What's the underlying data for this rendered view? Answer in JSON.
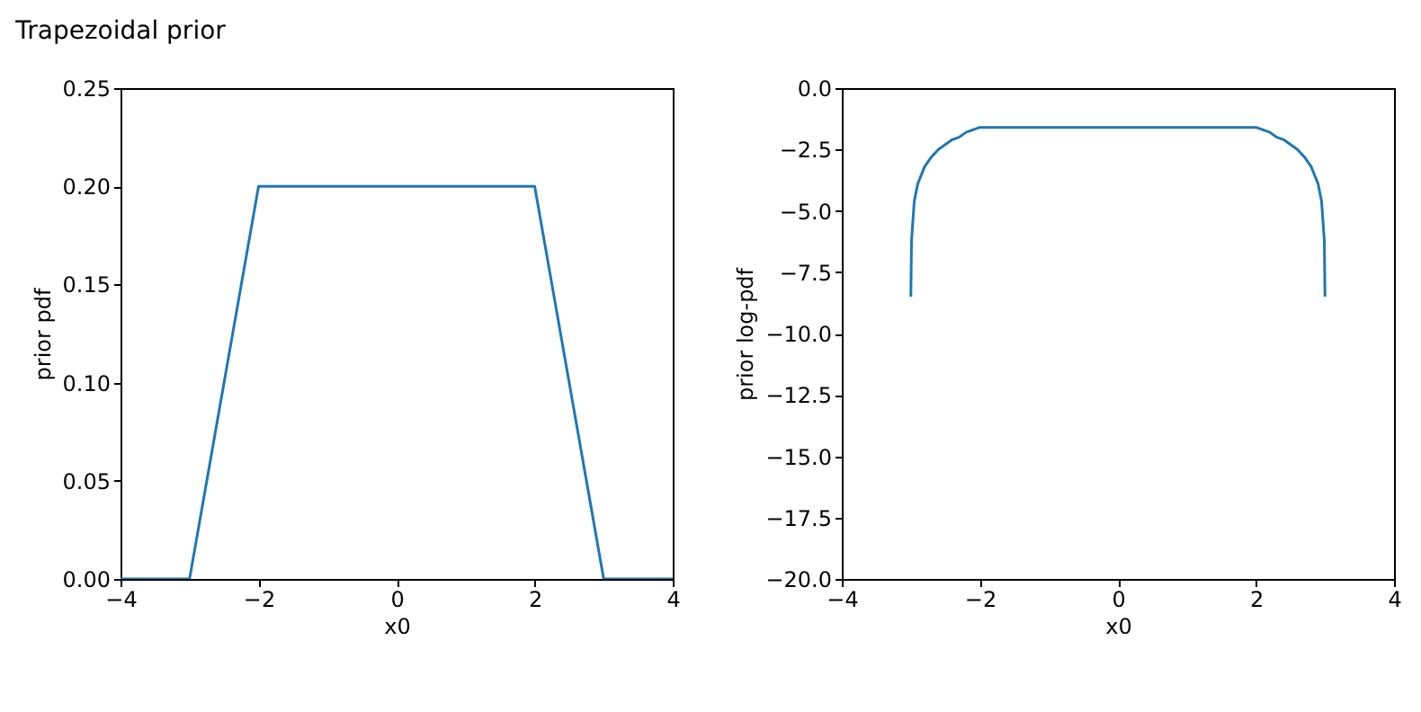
{
  "chart_data": [
    {
      "type": "line",
      "title": "Trapezoidal prior",
      "xlabel": "x0",
      "ylabel": "prior pdf",
      "xlim": [
        -4,
        4
      ],
      "xticks": [
        -4,
        -2,
        0,
        2,
        4
      ],
      "ylim": [
        0,
        0.25
      ],
      "yticks": [
        {
          "value": 0,
          "label": "0.00"
        },
        {
          "value": 0.05,
          "label": "0.05"
        },
        {
          "value": 0.1,
          "label": "0.10"
        },
        {
          "value": 0.15,
          "label": "0.15"
        },
        {
          "value": 0.2,
          "label": "0.20"
        },
        {
          "value": 0.25,
          "label": "0.25"
        }
      ],
      "grid": false,
      "x": [
        -4,
        -3,
        -2,
        2,
        3,
        4
      ],
      "series": [
        {
          "color": "#1f77b4",
          "values": [
            0,
            0,
            0.2,
            0.2,
            0,
            0
          ]
        }
      ]
    },
    {
      "type": "line",
      "xlabel": "x0",
      "ylabel": "prior log-pdf",
      "xlim": [
        -4,
        4
      ],
      "xticks": [
        -4,
        -2,
        0,
        2,
        4
      ],
      "ylim": [
        -20,
        0
      ],
      "yticks": [
        {
          "value": -20,
          "label": "−20.0"
        },
        {
          "value": -17.5,
          "label": "−17.5"
        },
        {
          "value": -15,
          "label": "−15.0"
        },
        {
          "value": -12.5,
          "label": "−12.5"
        },
        {
          "value": -10,
          "label": "−10.0"
        },
        {
          "value": -7.5,
          "label": "−7.5"
        },
        {
          "value": -5,
          "label": "−5.0"
        },
        {
          "value": -2.5,
          "label": "−2.5"
        },
        {
          "value": 0,
          "label": "0.0"
        }
      ],
      "grid": false,
      "x": [
        -3,
        -2.99,
        -2.95,
        -2.9,
        -2.8,
        -2.7,
        -2.6,
        -2.5,
        -2.4,
        -2.3,
        -2.2,
        -2.1,
        -2,
        2,
        2.1,
        2.2,
        2.3,
        2.4,
        2.5,
        2.6,
        2.7,
        2.8,
        2.9,
        2.95,
        2.99,
        3
      ],
      "series": [
        {
          "color": "#1f77b4",
          "values": [
            -8.5,
            -6.2,
            -4.6,
            -3.9,
            -3.2,
            -2.8,
            -2.5,
            -2.3,
            -2.1,
            -2.0,
            -1.8,
            -1.7,
            -1.6,
            -1.6,
            -1.7,
            -1.8,
            -2.0,
            -2.1,
            -2.3,
            -2.5,
            -2.8,
            -3.2,
            -3.9,
            -4.6,
            -6.2,
            -8.5
          ]
        }
      ]
    }
  ]
}
